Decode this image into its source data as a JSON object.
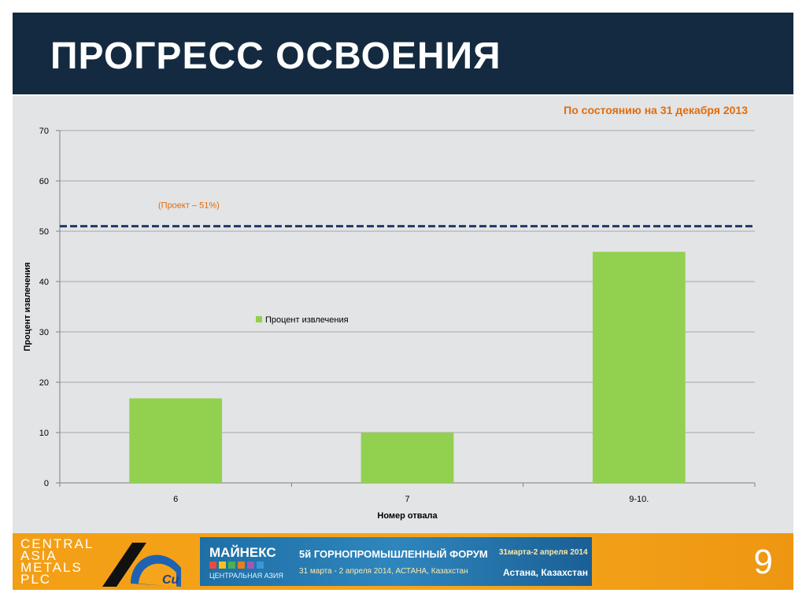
{
  "slide": {
    "title": "ПРОГРЕСС ОСВОЕНИЯ",
    "as_of": "По состоянию на 31 декабря 2013",
    "page_number": "9"
  },
  "chart_data": {
    "type": "bar",
    "categories": [
      "6",
      "7",
      "9-10."
    ],
    "series": [
      {
        "name": "Процент извлечения",
        "values": [
          16.8,
          10,
          45.9
        ],
        "color": "#92d050"
      }
    ],
    "xlabel": "Номер отвала",
    "ylabel": "Процент извлечения",
    "ylim": [
      0,
      70
    ],
    "yticks": [
      0,
      10,
      20,
      30,
      40,
      50,
      60,
      70
    ],
    "grid": true,
    "legend_placement": "center",
    "reference_line": {
      "value": 51,
      "label": "(Проект – 51%)",
      "color": "#1f3864",
      "style": "dashed"
    },
    "label_color": "#e36c0a"
  },
  "footer": {
    "logo": {
      "line1": "CENTRAL",
      "line2": "ASIA",
      "line3": "METALS",
      "line4": "PLC",
      "mark": "Cu"
    },
    "banner": {
      "brand": "МАЙНЕКС",
      "subtitle": "ЦЕНТРАЛЬНАЯ АЗИЯ",
      "forum": "5й ГОРНОПРОМЫШЛЕННЫЙ ФОРУМ",
      "dates_short": "31марта-2 апреля 2014",
      "dates_long": "31 марта - 2 апреля 2014, АСТАНА, Казахстан",
      "city": "Астана, Казахстан"
    }
  }
}
